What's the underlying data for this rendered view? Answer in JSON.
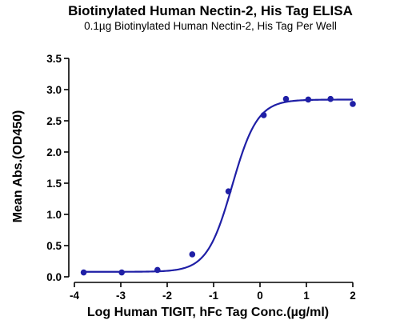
{
  "chart_data": {
    "type": "scatter",
    "title": "Biotinylated Human Nectin-2, His Tag ELISA",
    "subtitle": "0.1µg Biotinylated Human Nectin-2, His Tag Per Well",
    "xlabel": "Log Human TIGIT, hFc Tag Conc.(µg/ml)",
    "ylabel": "Mean Abs.(OD450)",
    "xlim": [
      -4,
      2
    ],
    "ylim": [
      0,
      3.5
    ],
    "x_ticks": [
      -4,
      -3,
      -2,
      -1,
      0,
      1,
      2
    ],
    "y_ticks": [
      0.0,
      0.5,
      1.0,
      1.5,
      2.0,
      2.5,
      3.0,
      3.5
    ],
    "x_tick_labels": [
      "-4",
      "-3",
      "-2",
      "-1",
      "0",
      "1",
      "2"
    ],
    "y_tick_labels": [
      "0.0",
      "0.5",
      "1.0",
      "1.5",
      "2.0",
      "2.5",
      "3.0",
      "3.5"
    ],
    "grid": false,
    "color": "#1f1fa6",
    "series": [
      {
        "points": [
          {
            "x": -3.8,
            "y": 0.07
          },
          {
            "x": -2.98,
            "y": 0.07
          },
          {
            "x": -2.21,
            "y": 0.11
          },
          {
            "x": -1.46,
            "y": 0.36
          },
          {
            "x": -0.68,
            "y": 1.37
          },
          {
            "x": 0.08,
            "y": 2.59
          },
          {
            "x": 0.56,
            "y": 2.85
          },
          {
            "x": 1.04,
            "y": 2.84
          },
          {
            "x": 1.52,
            "y": 2.85
          },
          {
            "x": 2.0,
            "y": 2.77
          }
        ],
        "fit": {
          "model": "4PL",
          "bottom": 0.08,
          "top": 2.84,
          "logEC50": -0.6,
          "hill": 1.6
        }
      }
    ]
  }
}
